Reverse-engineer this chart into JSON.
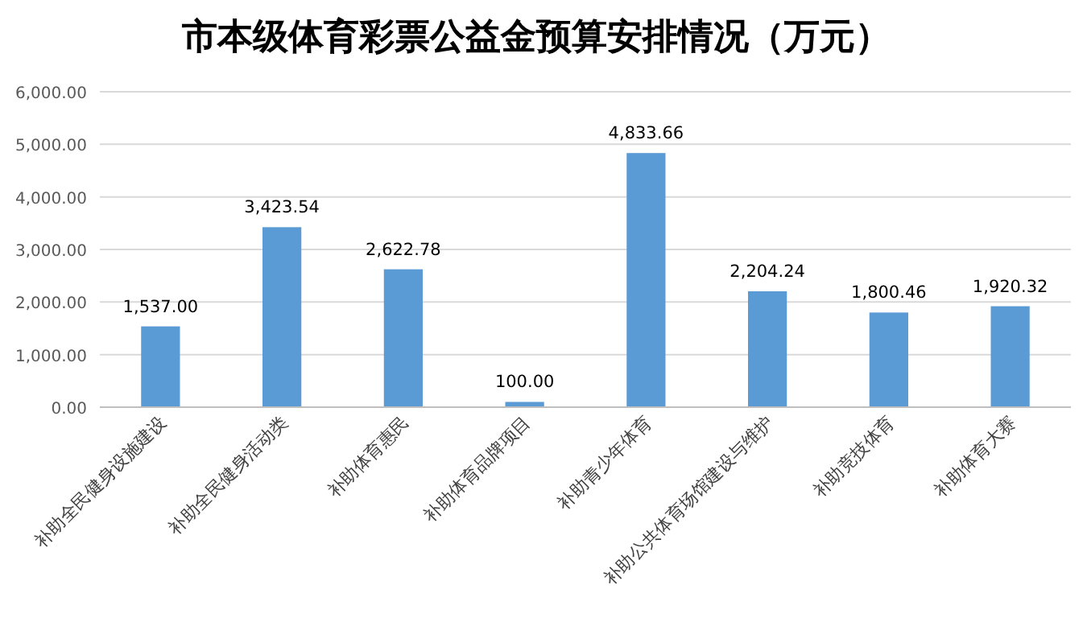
{
  "chart_data": {
    "type": "bar",
    "title": "市本级体育彩票公益金预算安排情况（万元）",
    "categories": [
      "补助全民健身设施建设",
      "补助全民健身活动类",
      "补助体育惠民",
      "补助体育品牌项目",
      "补助青少年体育",
      "补助公共体育场馆建设与维护",
      "补助竞技体育",
      "补助体育大赛"
    ],
    "values": [
      1537.0,
      3423.54,
      2622.78,
      100.0,
      4833.66,
      2204.24,
      1800.46,
      1920.32
    ],
    "value_labels": [
      "1,537.00",
      "3,423.54",
      "2,622.78",
      "100.00",
      "4,833.66",
      "2,204.24",
      "1,800.46",
      "1,920.32"
    ],
    "color": "#5b9bd5",
    "ylim": [
      0,
      6000
    ],
    "yticks": [
      {
        "value": 0,
        "label": "0.00"
      },
      {
        "value": 1000,
        "label": "1,000.00"
      },
      {
        "value": 2000,
        "label": "2,000.00"
      },
      {
        "value": 3000,
        "label": "3,000.00"
      },
      {
        "value": 4000,
        "label": "4,000.00"
      },
      {
        "value": 5000,
        "label": "5,000.00"
      },
      {
        "value": 6000,
        "label": "6,000.00"
      }
    ],
    "grid": "y"
  }
}
